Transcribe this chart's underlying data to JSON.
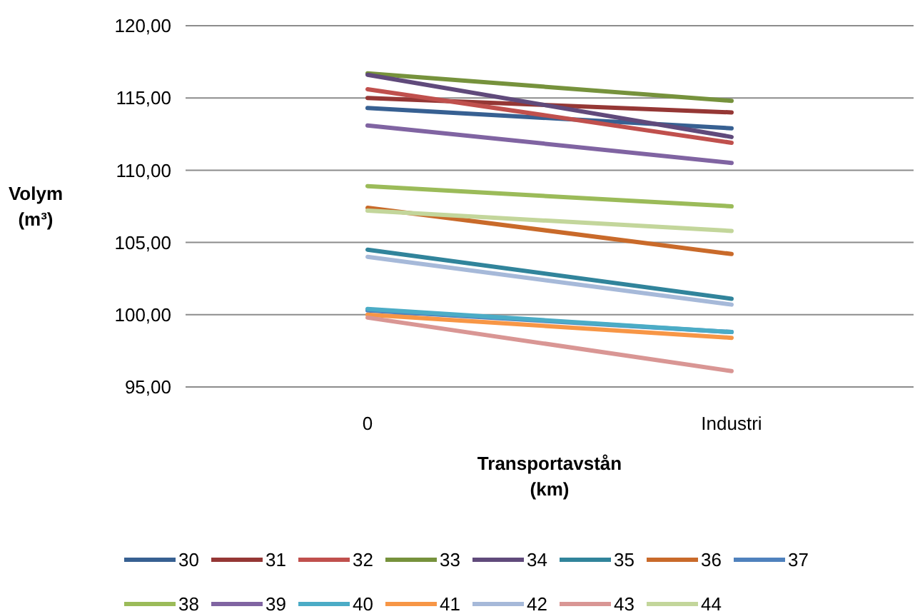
{
  "chart_data": {
    "type": "line",
    "xlabel": "Transportavstån\n(km)",
    "ylabel": "Volym\n(m³)",
    "categories": [
      "0",
      "Industri"
    ],
    "ylim": [
      95,
      120
    ],
    "yticks": [
      {
        "value": 95,
        "label": "95,00"
      },
      {
        "value": 100,
        "label": "100,00"
      },
      {
        "value": 105,
        "label": "105,00"
      },
      {
        "value": 110,
        "label": "110,00"
      },
      {
        "value": 115,
        "label": "115,00"
      },
      {
        "value": 120,
        "label": "120,00"
      }
    ],
    "grid": "y",
    "legend": "bottom",
    "marker": "none",
    "line_style": "solid",
    "series": [
      {
        "name": "30",
        "color": "#376092",
        "values": [
          114.3,
          112.9
        ]
      },
      {
        "name": "31",
        "color": "#953735",
        "values": [
          115.0,
          114.0
        ]
      },
      {
        "name": "32",
        "color": "#c0504d",
        "values": [
          115.6,
          111.9
        ]
      },
      {
        "name": "33",
        "color": "#76923c",
        "values": [
          116.7,
          114.8
        ]
      },
      {
        "name": "34",
        "color": "#604a7b",
        "values": [
          116.6,
          112.3
        ]
      },
      {
        "name": "35",
        "color": "#31849b",
        "values": [
          104.5,
          101.1
        ]
      },
      {
        "name": "36",
        "color": "#c96a2a",
        "values": [
          107.4,
          104.2
        ]
      },
      {
        "name": "37",
        "color": "#4f81bd",
        "values": [
          100.3,
          98.8
        ]
      },
      {
        "name": "38",
        "color": "#9bbb59",
        "values": [
          108.9,
          107.5
        ]
      },
      {
        "name": "39",
        "color": "#8064a2",
        "values": [
          113.1,
          110.5
        ]
      },
      {
        "name": "40",
        "color": "#4bacc6",
        "values": [
          100.4,
          98.8
        ]
      },
      {
        "name": "41",
        "color": "#f79646",
        "values": [
          100.0,
          98.4
        ]
      },
      {
        "name": "42",
        "color": "#a6b9d9",
        "values": [
          104.0,
          100.7
        ]
      },
      {
        "name": "43",
        "color": "#d99694",
        "values": [
          99.8,
          96.1
        ]
      },
      {
        "name": "44",
        "color": "#c3d69b",
        "values": [
          107.2,
          105.8
        ]
      }
    ]
  }
}
